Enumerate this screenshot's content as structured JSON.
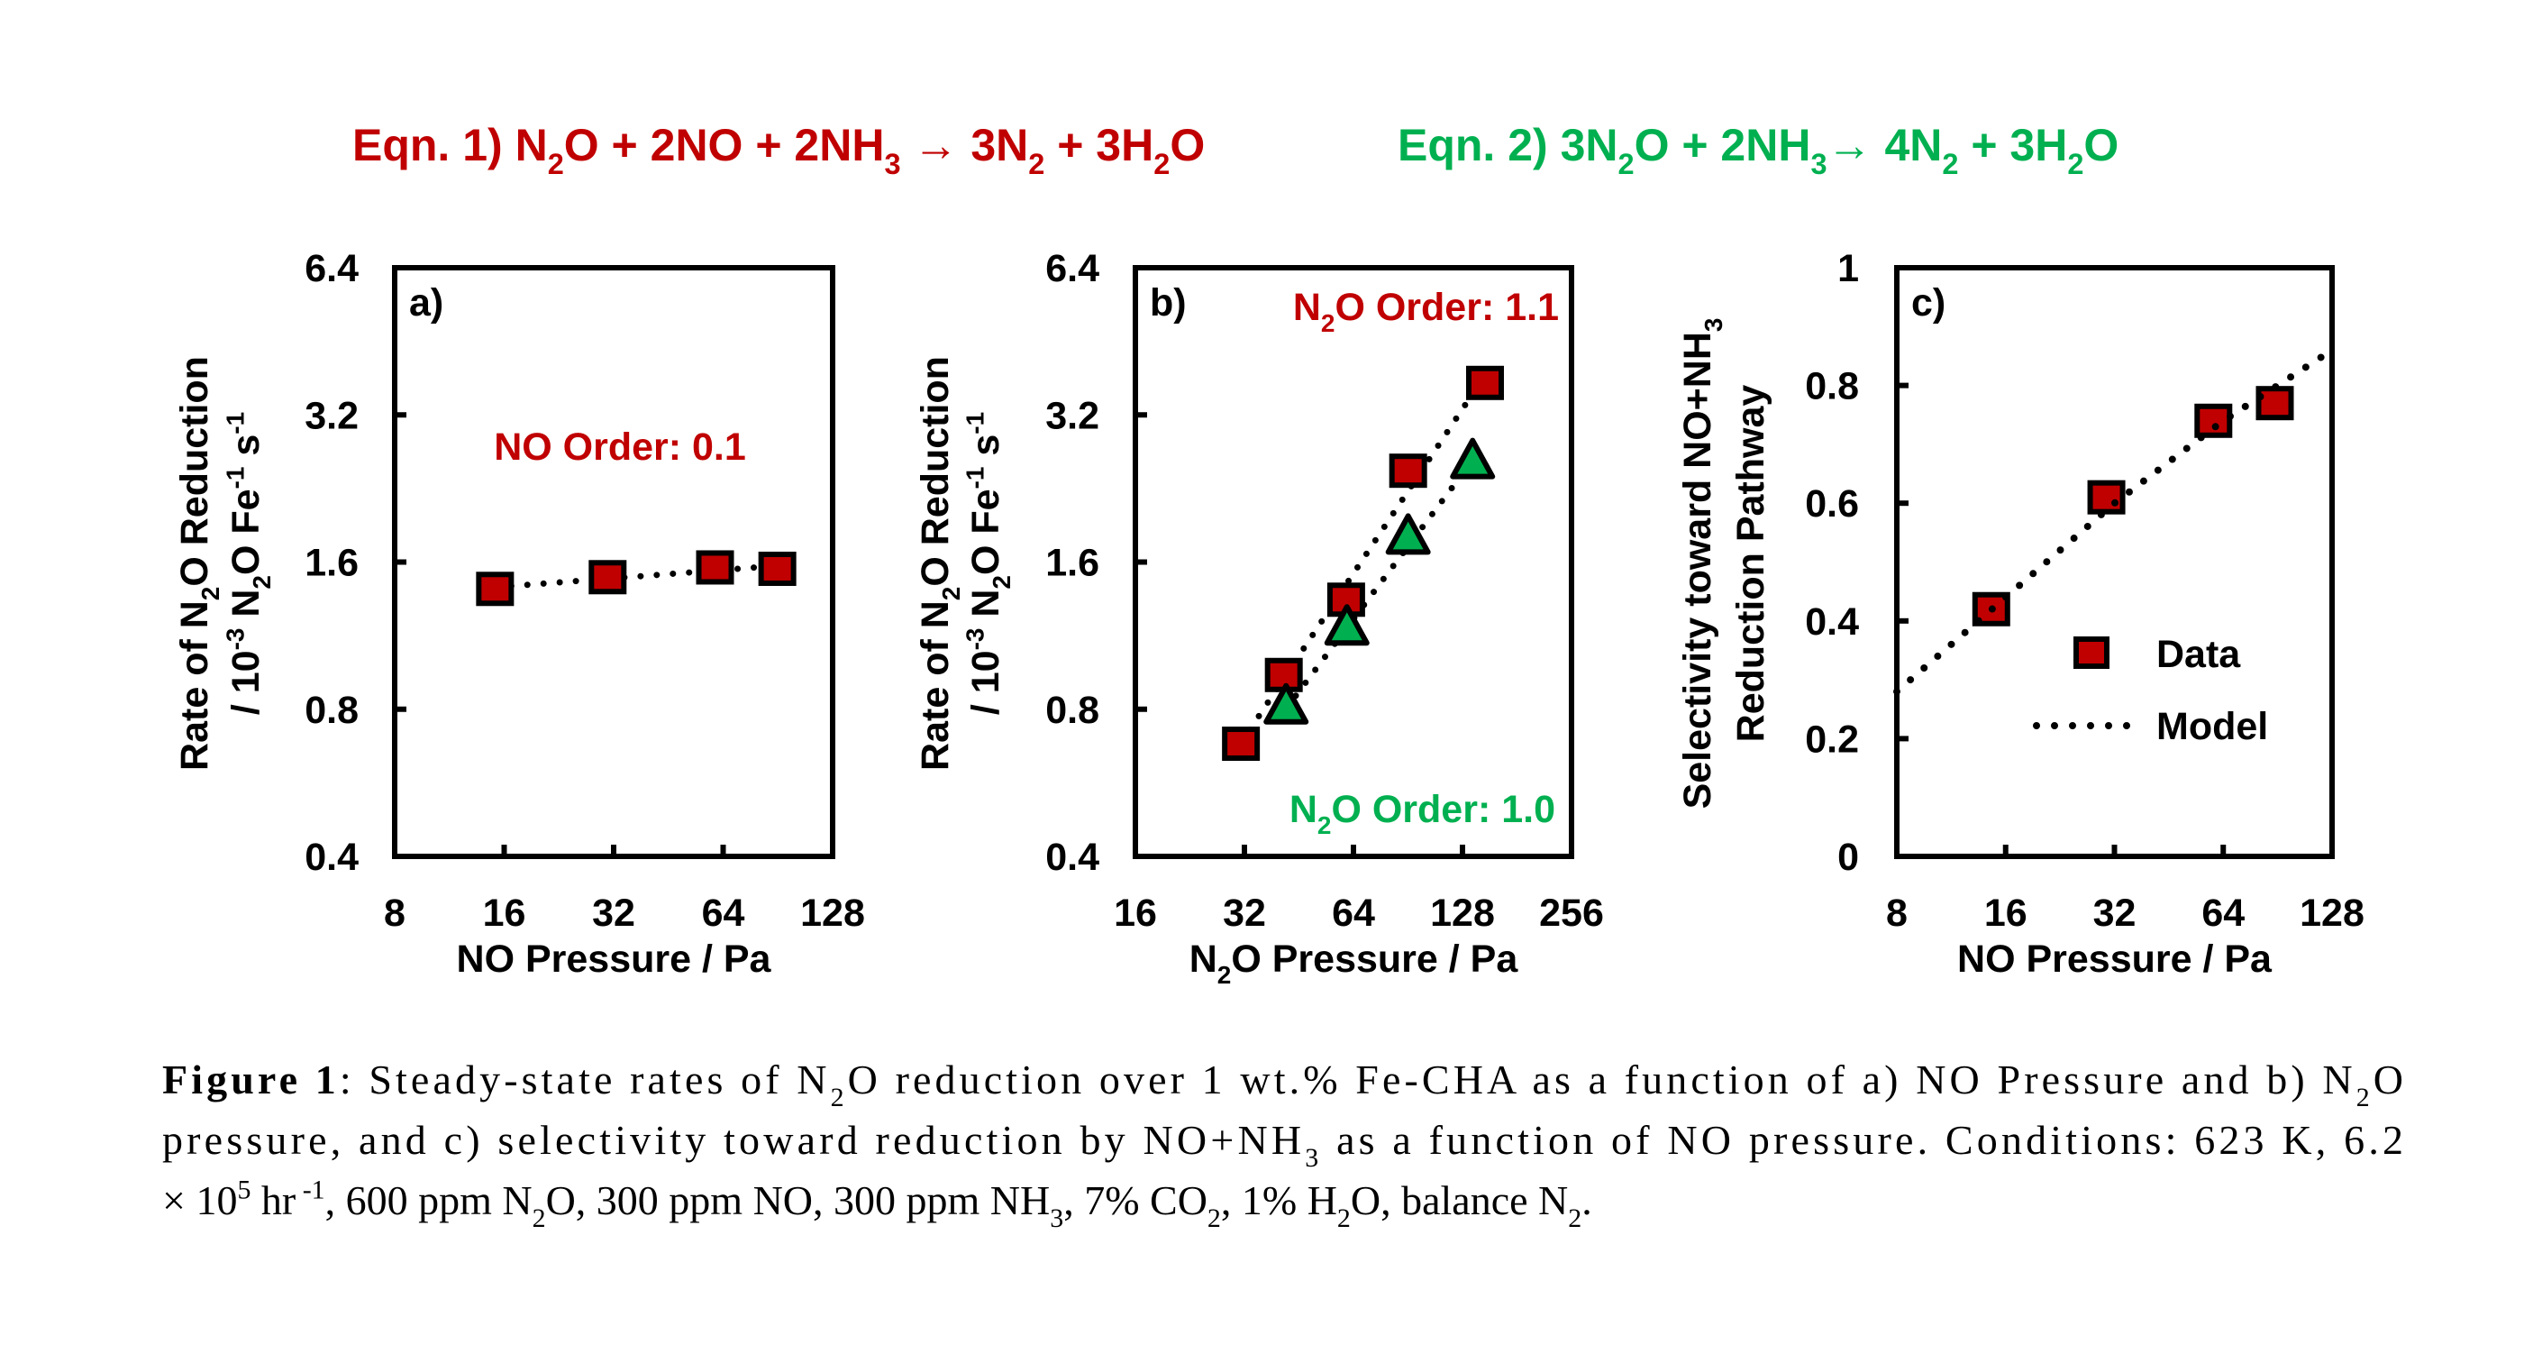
{
  "header": {
    "eqn1": [
      "Eqn. 1) N",
      {
        "t": "2",
        "s": "sub"
      },
      "O + 2NO + 2NH",
      {
        "t": "3",
        "s": "sub"
      },
      " → 3N",
      {
        "t": "2",
        "s": "sub"
      },
      " + 3H",
      {
        "t": "2",
        "s": "sub"
      },
      "O"
    ],
    "eqn2": [
      "Eqn. 2) 3N",
      {
        "t": "2",
        "s": "sub"
      },
      "O + 2NH",
      {
        "t": "3",
        "s": "sub"
      },
      "→ 4N",
      {
        "t": "2",
        "s": "sub"
      },
      " + 3H",
      {
        "t": "2",
        "s": "sub"
      },
      "O"
    ],
    "eqn1_color": "#c00000",
    "eqn2_color": "#00b050"
  },
  "colors": {
    "red": "#c00000",
    "green": "#00b050"
  },
  "chart_data": [
    {
      "type": "scatter",
      "panel_label": "a)",
      "xlabel": [
        "NO Pressure / Pa"
      ],
      "ylabel": [
        [
          "Rate of N",
          {
            "t": "2",
            "s": "sub"
          },
          "O Reduction"
        ],
        [
          "/ 10",
          {
            "t": "-3",
            "s": "sup"
          },
          " N",
          {
            "t": "2",
            "s": "sub"
          },
          "O  Fe",
          {
            "t": "-1",
            "s": "sup"
          },
          " s",
          {
            "t": "-1",
            "s": "sup"
          }
        ]
      ],
      "xscale": "log2",
      "yscale": "log2",
      "xlim": [
        8,
        128
      ],
      "ylim": [
        0.4,
        6.4
      ],
      "xticks": [
        "8",
        "16",
        "32",
        "64",
        "128"
      ],
      "yticks": [
        "0.4",
        "0.8",
        "1.6",
        "3.2",
        "6.4"
      ],
      "series": [
        {
          "marker": "square",
          "color": "#c00000",
          "fit": "power-law",
          "x": [
            15.1,
            30.8,
            60.8,
            90.2
          ],
          "y": [
            1.41,
            1.49,
            1.56,
            1.55
          ]
        }
      ],
      "annotations": [
        {
          "text": [
            "NO Order: 0.1"
          ],
          "color": "#c00000"
        }
      ],
      "grid": false
    },
    {
      "type": "scatter",
      "panel_label": "b)",
      "xlabel": [
        "N",
        {
          "t": "2",
          "s": "sub"
        },
        "O Pressure / Pa"
      ],
      "ylabel": [
        [
          "Rate of N",
          {
            "t": "2",
            "s": "sub"
          },
          "O Reduction"
        ],
        [
          "/ 10",
          {
            "t": "-3",
            "s": "sup"
          },
          " N",
          {
            "t": "2",
            "s": "sub"
          },
          "O  Fe",
          {
            "t": "-1",
            "s": "sup"
          },
          " s",
          {
            "t": "-1",
            "s": "sup"
          }
        ]
      ],
      "xscale": "log2",
      "yscale": "log2",
      "xlim": [
        16,
        256
      ],
      "ylim": [
        0.4,
        6.4
      ],
      "xticks": [
        "16",
        "32",
        "64",
        "128",
        "256"
      ],
      "yticks": [
        "0.4",
        "0.8",
        "1.6",
        "3.2",
        "6.4"
      ],
      "series": [
        {
          "marker": "square",
          "color": "#c00000",
          "fit": "power-law",
          "x": [
            31.3,
            41.1,
            61.1,
            90.6,
            147.7
          ],
          "y": [
            0.68,
            0.94,
            1.34,
            2.46,
            3.72
          ]
        },
        {
          "marker": "triangle",
          "color": "#00b050",
          "fit": "power-law",
          "x": [
            41.7,
            61.4,
            90.6,
            136.5
          ],
          "y": [
            0.8,
            1.16,
            1.78,
            2.54
          ]
        }
      ],
      "annotations": [
        {
          "text": [
            "N",
            {
              "t": "2",
              "s": "sub"
            },
            "O Order: 1.1"
          ],
          "color": "#c00000"
        },
        {
          "text": [
            "N",
            {
              "t": "2",
              "s": "sub"
            },
            "O Order: 1.0"
          ],
          "color": "#00b050"
        }
      ],
      "grid": false
    },
    {
      "type": "scatter",
      "panel_label": "c)",
      "xlabel": [
        "NO Pressure / Pa"
      ],
      "ylabel": [
        [
          "Selectivity toward NO+NH",
          {
            "t": "3",
            "s": "sub"
          }
        ],
        [
          "Reduction Pathway"
        ]
      ],
      "xscale": "log2",
      "yscale": "linear",
      "xlim": [
        8,
        128
      ],
      "ylim": [
        0,
        1
      ],
      "xticks": [
        "8",
        "16",
        "32",
        "64",
        "128"
      ],
      "yticks": [
        "0",
        "0.2",
        "0.4",
        "0.6",
        "0.8",
        "1"
      ],
      "series": [
        {
          "name": "Data",
          "marker": "square",
          "color": "#c00000",
          "x": [
            14.6,
            30.4,
            60.1,
            88.9
          ],
          "y": [
            0.42,
            0.61,
            0.74,
            0.77
          ]
        },
        {
          "name": "Model",
          "marker": "dotted-line",
          "color": "#000000",
          "x": [
            8,
            16,
            32,
            64,
            128
          ],
          "y": [
            0.28,
            0.44,
            0.6,
            0.74,
            0.86
          ]
        }
      ],
      "legend": {
        "position": "center-right",
        "entries": [
          "Data",
          "Model"
        ]
      },
      "grid": false
    }
  ],
  "caption": {
    "lines": [
      [
        {
          "t": "Figure 1",
          "s": "b"
        },
        ": Steady-state rates of N",
        {
          "t": "2",
          "s": "sub"
        },
        "O reduction over 1 wt.% Fe-CHA as a function of a) NO Pressure and b) N",
        {
          "t": "2",
          "s": "sub"
        },
        "O"
      ],
      [
        "pressure, and c) selectivity toward reduction by NO+NH",
        {
          "t": "3",
          "s": "sub"
        },
        " as a function of NO pressure. Conditions: 623 K, 6.2"
      ],
      [
        "× 10",
        {
          "t": "5",
          "s": "sup"
        },
        " hr",
        {
          "t": " -1",
          "s": "sup"
        },
        ", 600 ppm N",
        {
          "t": "2",
          "s": "sub"
        },
        "O, 300 ppm NO, 300 ppm NH",
        {
          "t": "3",
          "s": "sub"
        },
        ", 7% CO",
        {
          "t": "2",
          "s": "sub"
        },
        ", 1% H",
        {
          "t": "2",
          "s": "sub"
        },
        "O, balance N",
        {
          "t": "2",
          "s": "sub"
        },
        "."
      ]
    ]
  }
}
